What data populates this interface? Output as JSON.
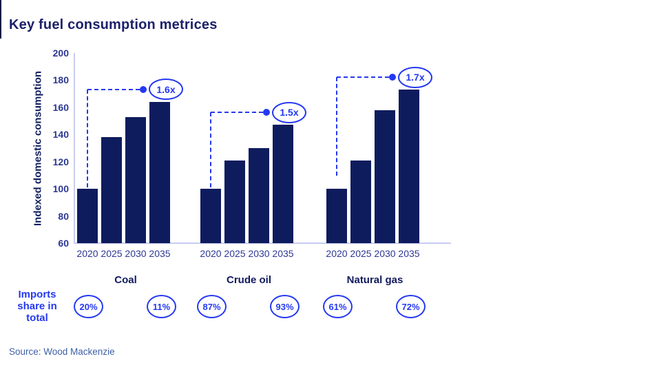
{
  "title": "Key fuel consumption metrices",
  "source": "Source: Wood Mackenzie",
  "imports_label": "Imports share in total",
  "colors": {
    "accent_blue": "#2438f2",
    "bar_navy": "#0e1c5e",
    "text_navy": "#2c3794",
    "title_navy": "#1d2169",
    "axis_line": "#c9cdee",
    "source_blue": "#3d5fa6"
  },
  "chart_data": {
    "type": "bar",
    "title": "Key fuel consumption metrices",
    "ylabel": "Indexed domestic consumption",
    "xlabel": "",
    "ylim": [
      60,
      200
    ],
    "yticks": [
      200,
      180,
      160,
      140,
      120,
      100,
      80,
      60
    ],
    "grid": false,
    "legend": "none",
    "categories": [
      "2020",
      "2025",
      "2030",
      "2035"
    ],
    "groups": [
      {
        "label": "Coal",
        "values": [
          100,
          138,
          153,
          164
        ],
        "multiplier": "1.6x",
        "imports_share_2020": "20%",
        "imports_share_2035": "11%"
      },
      {
        "label": "Crude oil",
        "values": [
          100,
          121,
          130,
          147
        ],
        "multiplier": "1.5x",
        "imports_share_2020": "87%",
        "imports_share_2035": "93%"
      },
      {
        "label": "Natural gas",
        "values": [
          100,
          121,
          158,
          173
        ],
        "multiplier": "1.7x",
        "imports_share_2020": "61%",
        "imports_share_2035": "72%"
      }
    ],
    "annotation_note": "dashed line from 2020 bar to 2035 multiplier badge per group",
    "imports_row_label": "Imports share in total"
  }
}
